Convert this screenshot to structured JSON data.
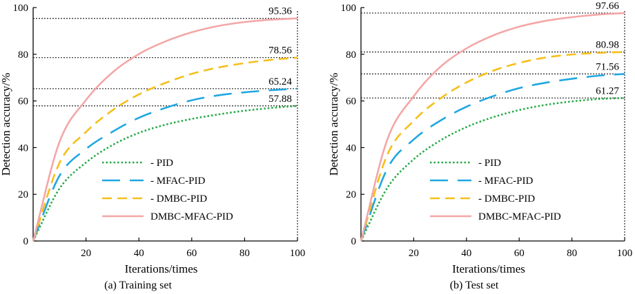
{
  "chart_data": [
    {
      "type": "line",
      "caption": "(a) Training set",
      "xlabel": "Iterations/times",
      "ylabel": "Detection accuracy/%",
      "xlim": [
        0,
        100
      ],
      "ylim": [
        0,
        100
      ],
      "xticks": [
        "20",
        "40",
        "60",
        "80",
        "100"
      ],
      "yticks": [
        "0",
        "20",
        "40",
        "60",
        "80",
        "100"
      ],
      "x": [
        0,
        10,
        20,
        30,
        40,
        50,
        60,
        70,
        80,
        90,
        100
      ],
      "series": [
        {
          "name": "PID",
          "label": "- PID",
          "style": "dotted",
          "color": "#22aa44",
          "values": [
            0,
            22.5,
            33.6,
            41.1,
            46.3,
            49.8,
            52.3,
            54.2,
            55.8,
            57.0,
            57.88
          ]
        },
        {
          "name": "MFAC-PID",
          "label": "- MFAC-PID",
          "style": "longdash",
          "color": "#1ea7e1",
          "values": [
            0,
            28.0,
            39.4,
            46.8,
            52.8,
            57.0,
            60.3,
            62.4,
            63.7,
            64.6,
            65.24
          ]
        },
        {
          "name": "DMBC-PID",
          "label": "- DMBC-PID",
          "style": "dash",
          "color": "#f5bf1a",
          "values": [
            0,
            33.5,
            46.7,
            56.0,
            62.8,
            67.7,
            71.6,
            74.3,
            76.2,
            77.6,
            78.56
          ]
        },
        {
          "name": "DMBC-MFAC-PID",
          "label": "DMBC-MFAC-PID",
          "style": "solid",
          "color": "#f4a6a6",
          "values": [
            0,
            42.5,
            60.4,
            72.2,
            80.1,
            85.5,
            89.4,
            92.1,
            93.8,
            94.8,
            95.36
          ]
        }
      ],
      "annotations": [
        "95.36",
        "78.56",
        "65.24",
        "57.88"
      ],
      "annotation_values": [
        95.36,
        78.56,
        65.24,
        57.88
      ]
    },
    {
      "type": "line",
      "caption": "(b) Test set",
      "xlabel": "Iterations/times",
      "ylabel": "Detection accuracy/%",
      "xlim": [
        0,
        100
      ],
      "ylim": [
        0,
        100
      ],
      "xticks": [
        "20",
        "40",
        "60",
        "80",
        "100"
      ],
      "yticks": [
        "0",
        "20",
        "40",
        "60",
        "80",
        "100"
      ],
      "x": [
        0,
        10,
        20,
        30,
        40,
        50,
        60,
        70,
        80,
        90,
        100
      ],
      "series": [
        {
          "name": "PID",
          "label": "- PID",
          "style": "dotted",
          "color": "#22aa44",
          "values": [
            0,
            22.8,
            35.0,
            43.0,
            48.8,
            53.0,
            56.1,
            58.3,
            59.8,
            60.8,
            61.27
          ]
        },
        {
          "name": "MFAC-PID",
          "label": "- MFAC-PID",
          "style": "longdash",
          "color": "#1ea7e1",
          "values": [
            0,
            31.0,
            43.5,
            51.5,
            57.5,
            62.0,
            65.5,
            67.8,
            69.5,
            70.8,
            71.56
          ]
        },
        {
          "name": "DMBC-PID",
          "label": "- DMBC-PID",
          "style": "dash",
          "color": "#f5bf1a",
          "values": [
            0,
            37.0,
            51.5,
            61.0,
            67.9,
            72.9,
            76.3,
            78.6,
            79.9,
            80.6,
            80.98
          ]
        },
        {
          "name": "DMBC-MFAC-PID",
          "label": "DMBC-MFAC-PID",
          "style": "solid",
          "color": "#f4a6a6",
          "values": [
            0,
            43.5,
            62.0,
            74.5,
            82.5,
            88.0,
            91.8,
            94.3,
            95.9,
            97.0,
            97.66
          ]
        }
      ],
      "annotations": [
        "97.66",
        "80.98",
        "71.56",
        "61.27"
      ],
      "annotation_values": [
        97.66,
        80.98,
        71.56,
        61.27
      ]
    }
  ]
}
